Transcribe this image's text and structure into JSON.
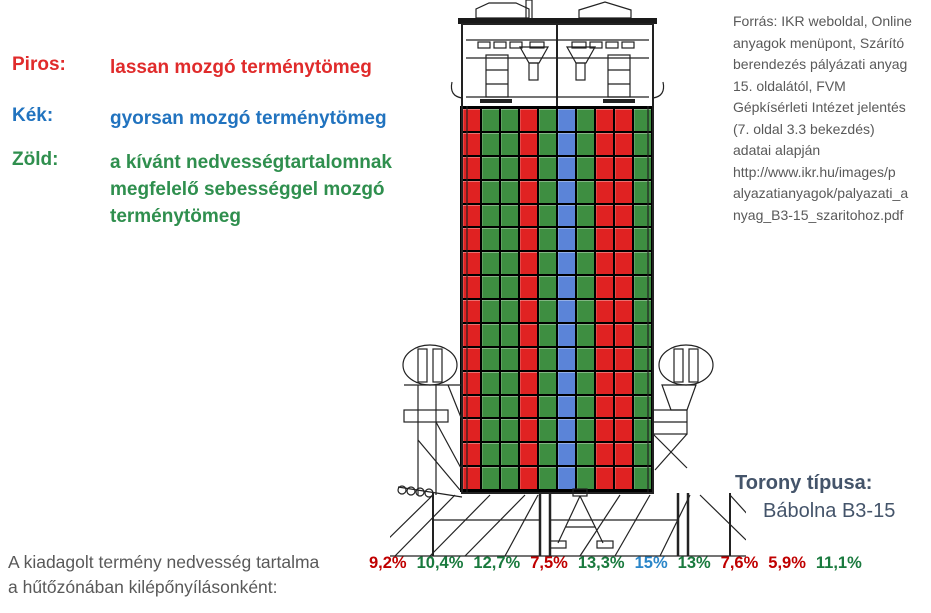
{
  "legend": {
    "items": [
      {
        "label": "Piros:",
        "text": "lassan mozgó terménytömeg",
        "color": "#e02b2b"
      },
      {
        "label": "Kék:",
        "text": "gyorsan mozgó terménytömeg",
        "color": "#2173bf"
      },
      {
        "label": "Zöld:",
        "text": "a kívánt nedvességtartalomnak\nmegfelelő sebességgel mozgó\nterménytömeg",
        "color": "#2f8f4e"
      }
    ]
  },
  "source_note": {
    "text": "Forrás: IKR weboldal, Online\nanyagok menüpont,  Szárító\nberendezés pályázati anyag\n15. oldalától, FVM\nGépkísérleti Intézet jelentés\n(7. oldal 3.3 bekezdés)\nadatai alapján\nhttp://www.ikr.hu/images/p\nalyazatianyagok/palyazati_a\nnyag_B3-15_szaritohoz.pdf"
  },
  "tower": {
    "type_label": "Torony típusa:",
    "type_value": "Bábolna B3-15",
    "columns": [
      "red",
      "green",
      "green",
      "red",
      "green",
      "blue",
      "green",
      "red",
      "red",
      "green"
    ],
    "rows": 16
  },
  "colors": {
    "red": "#e02222",
    "green": "#3e8e41",
    "blue": "#5b84d8"
  },
  "caption": {
    "text": "A kiadagolt termény nedvesség tartalma\na hűtőzónában kilépőnyílásonként:"
  },
  "moisture_values": [
    {
      "value": "9,2%",
      "color": "#c00000"
    },
    {
      "value": "10,4%",
      "color": "#1a7a3e"
    },
    {
      "value": "12,7%",
      "color": "#1a7a3e"
    },
    {
      "value": "7,5%",
      "color": "#c00000"
    },
    {
      "value": "13,3%",
      "color": "#1a7a3e"
    },
    {
      "value": "15%",
      "color": "#2b86c9"
    },
    {
      "value": "13%",
      "color": "#1a7a3e"
    },
    {
      "value": "7,6%",
      "color": "#c00000"
    },
    {
      "value": "5,9%",
      "color": "#c00000"
    },
    {
      "value": "11,1%",
      "color": "#1a7a3e"
    }
  ]
}
